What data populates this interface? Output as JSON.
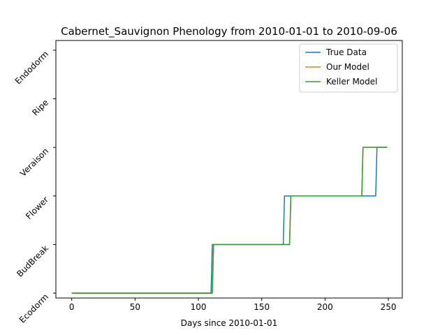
{
  "chart_data": {
    "type": "line",
    "title": "Cabernet_Sauvignon Phenology from 2010-01-01 to 2010-09-06",
    "xlabel": "Days since 2010-01-01",
    "ylabel": "",
    "xlim": [
      -12.5,
      261
    ],
    "x_ticks": [
      0,
      50,
      100,
      150,
      200,
      250
    ],
    "y_categories": [
      "Ecodorm",
      "BudBreak",
      "Flower",
      "Veraison",
      "Ripe",
      "Endodorm"
    ],
    "ylim": [
      -0.1,
      5.2
    ],
    "grid": false,
    "legend_position": "top-right",
    "series": [
      {
        "name": "True Data",
        "color": "#1f77b4",
        "points": [
          [
            0,
            0
          ],
          [
            110,
            0
          ],
          [
            111,
            1
          ],
          [
            167,
            1
          ],
          [
            168,
            2
          ],
          [
            240,
            2
          ],
          [
            241,
            3
          ],
          [
            249,
            3
          ]
        ]
      },
      {
        "name": "Our Model",
        "color": "#ff7f0e",
        "points": [
          [
            0,
            0
          ],
          [
            111,
            0
          ],
          [
            112,
            1
          ],
          [
            172,
            1
          ],
          [
            173,
            2
          ],
          [
            229,
            2
          ],
          [
            230,
            3
          ],
          [
            249,
            3
          ]
        ]
      },
      {
        "name": "Keller Model",
        "color": "#2ca02c",
        "points": [
          [
            0,
            0
          ],
          [
            111,
            0
          ],
          [
            112,
            1
          ],
          [
            172,
            1
          ],
          [
            173,
            2
          ],
          [
            229,
            2
          ],
          [
            230,
            3
          ],
          [
            249,
            3
          ]
        ]
      }
    ]
  }
}
